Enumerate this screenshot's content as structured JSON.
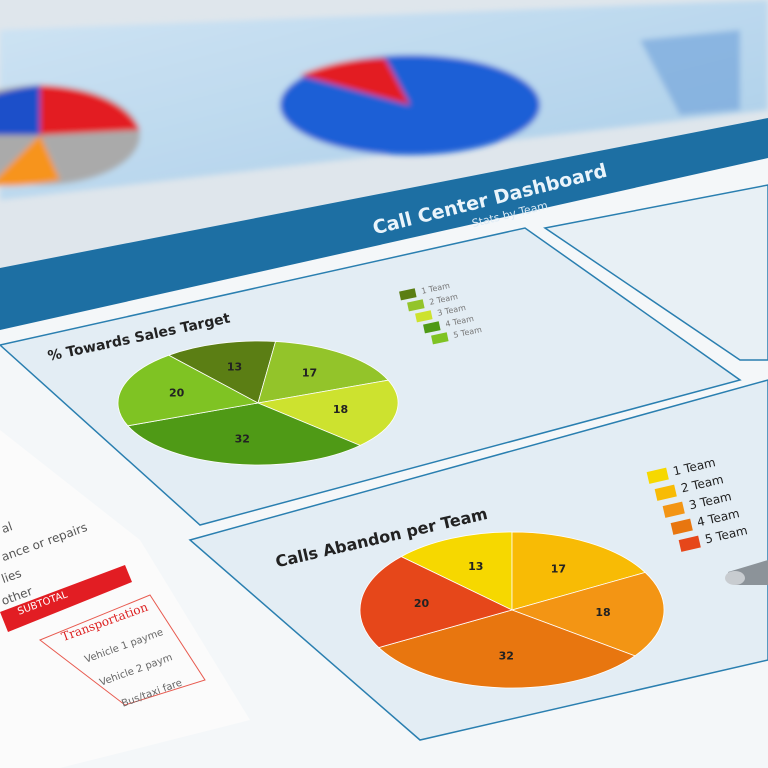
{
  "dashboard": {
    "title": "Call Center Dashboard",
    "subtitle": "Stats by Team"
  },
  "sheet": {
    "lines": [
      "al",
      "ance or repairs",
      "lies",
      "other"
    ],
    "subtotal": "SUBTOTAL",
    "section": "Transportation",
    "items": [
      "Vehicle 1 payme",
      "Vehicle 2 paym",
      "Bus/taxi fare"
    ]
  },
  "chart_data": [
    {
      "type": "pie",
      "title": "% Towards Sales Target",
      "categories": [
        "1 Team",
        "2 Team",
        "3 Team",
        "4 Team",
        "5 Team"
      ],
      "values": [
        13,
        17,
        18,
        32,
        20
      ],
      "colors": [
        "#5b7e14",
        "#93c42a",
        "#cde22f",
        "#4f9a16",
        "#7fc323"
      ]
    },
    {
      "type": "pie",
      "title": "Calls Abandon per Team",
      "categories": [
        "1 Team",
        "2 Team",
        "3 Team",
        "4 Team",
        "5 Team"
      ],
      "values": [
        13,
        17,
        18,
        32,
        20
      ],
      "colors": [
        "#f6d800",
        "#f8bb05",
        "#f39514",
        "#e8760f",
        "#e6471a"
      ]
    }
  ]
}
